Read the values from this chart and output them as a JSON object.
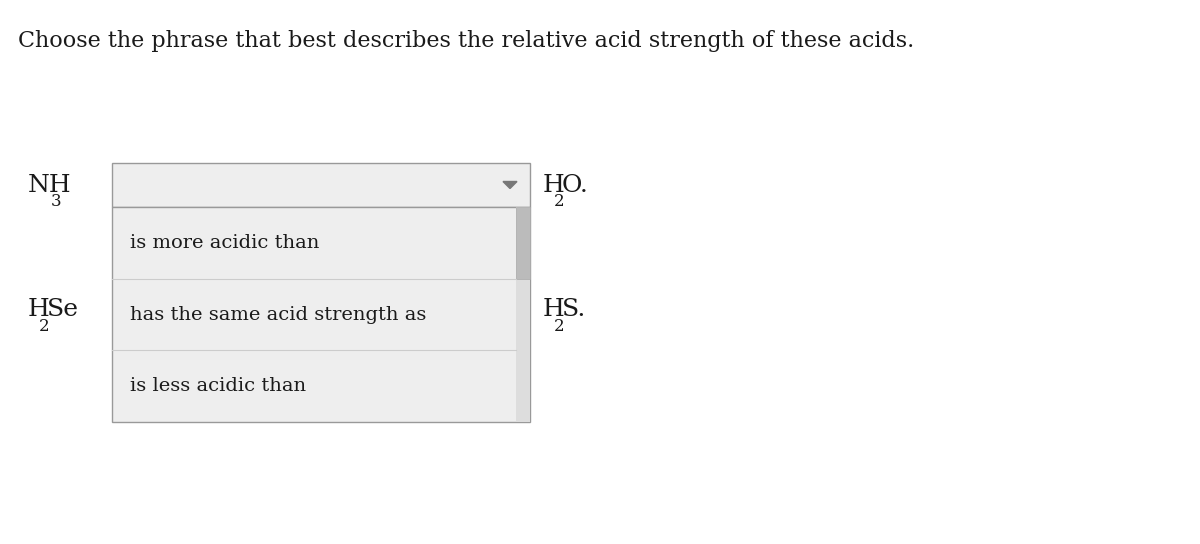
{
  "title": "Choose the phrase that best describes the relative acid strength of these acids.",
  "title_fontsize": 16,
  "background_color": "#ffffff",
  "label_fontsize": 18,
  "sub_fontsize": 12,
  "option_fontsize": 14,
  "text_color": "#1a1a1a",
  "dropdown_bg": "#eeeeee",
  "dropdown_border": "#999999",
  "list_bg": "#eeeeee",
  "list_border": "#999999",
  "divider_color": "#cccccc",
  "arrow_color": "#777777",
  "scrollbar_bg": "#dddddd",
  "scrollbar_thumb": "#bbbbbb",
  "options": [
    "is more acidic than",
    "has the same acid strength as",
    "is less acidic than"
  ]
}
